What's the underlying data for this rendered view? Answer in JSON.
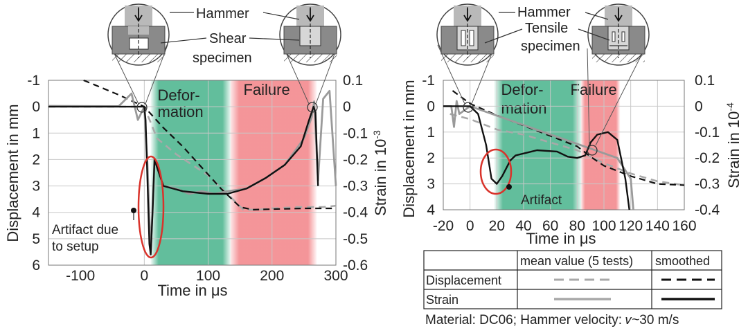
{
  "chart_data": [
    {
      "type": "line",
      "xlabel": "Time in μs",
      "ylabel": "Displacement in mm",
      "y2label": "Strain in 10",
      "y2label_exp": "-3",
      "xlim": [
        -150,
        300
      ],
      "ylim": [
        -1,
        6
      ],
      "y2lim": [
        0.1,
        -0.6
      ],
      "xticks": [
        "-100",
        "0",
        "100",
        "200",
        "300"
      ],
      "xtick_values": [
        -100,
        0,
        100,
        200,
        300
      ],
      "yticks": [
        "-1",
        "0",
        "1",
        "2",
        "3",
        "4",
        "5",
        "6"
      ],
      "y2ticks": [
        "0.1",
        "0",
        "-0.1",
        "-0.2",
        "-0.3",
        "-0.4",
        "-0.5",
        "-0.6"
      ],
      "regions": [
        {
          "label_lines": [
            "Defor-",
            "mation"
          ],
          "x0": 10,
          "x1": 135,
          "color": "#2ea87b"
        },
        {
          "label_lines": [
            "Failure"
          ],
          "x0": 135,
          "x1": 270,
          "color": "#f0686d"
        }
      ],
      "inset_labels": {
        "hammer": "Hammer",
        "specimen_lines": [
          "Shear",
          "specimen"
        ]
      },
      "artifact_label_lines": [
        "Artifact due",
        "to setup"
      ],
      "series": [
        {
          "key": "disp_mean",
          "points": [
            [
              -150,
              0
            ],
            [
              0,
              0
            ],
            [
              20,
              1.2
            ],
            [
              50,
              1.8
            ],
            [
              100,
              2.6
            ],
            [
              130,
              3.3
            ],
            [
              155,
              3.9
            ],
            [
              180,
              3.9
            ],
            [
              200,
              3.85
            ],
            [
              240,
              3.8
            ],
            [
              280,
              3.8
            ],
            [
              300,
              3.75
            ]
          ]
        },
        {
          "key": "disp_smooth",
          "points": [
            [
              -95,
              -1
            ],
            [
              -80,
              -0.85
            ],
            [
              -40,
              -0.45
            ],
            [
              0,
              0
            ],
            [
              30,
              0.8
            ],
            [
              60,
              1.5
            ],
            [
              90,
              2.3
            ],
            [
              120,
              3.1
            ],
            [
              150,
              3.8
            ],
            [
              170,
              3.9
            ],
            [
              200,
              3.88
            ],
            [
              250,
              3.85
            ],
            [
              300,
              3.85
            ]
          ]
        },
        {
          "key": "strain_mean",
          "points": [
            [
              -150,
              0.003
            ],
            [
              -40,
              0.002
            ],
            [
              -20,
              0.05
            ],
            [
              -10,
              -0.05
            ],
            [
              0,
              0
            ],
            [
              5,
              -0.22
            ],
            [
              10,
              -0.55
            ],
            [
              16,
              -0.2
            ],
            [
              30,
              -0.3
            ],
            [
              50,
              -0.31
            ],
            [
              70,
              -0.33
            ],
            [
              90,
              -0.32
            ],
            [
              110,
              -0.33
            ],
            [
              130,
              -0.32
            ],
            [
              160,
              -0.31
            ],
            [
              190,
              -0.27
            ],
            [
              220,
              -0.22
            ],
            [
              250,
              -0.12
            ],
            [
              262,
              -0.04
            ],
            [
              266,
              0.02
            ],
            [
              272,
              -0.28
            ],
            [
              280,
              0.03
            ],
            [
              290,
              0.06
            ],
            [
              300,
              -0.3
            ]
          ]
        },
        {
          "key": "strain_smooth",
          "points": [
            [
              -150,
              0
            ],
            [
              0,
              0
            ],
            [
              2,
              -0.05
            ],
            [
              4,
              -0.2
            ],
            [
              8,
              -0.52
            ],
            [
              10,
              -0.56
            ],
            [
              13,
              -0.4
            ],
            [
              16,
              -0.2
            ],
            [
              20,
              -0.23
            ],
            [
              30,
              -0.3
            ],
            [
              60,
              -0.32
            ],
            [
              100,
              -0.33
            ],
            [
              130,
              -0.33
            ],
            [
              160,
              -0.31
            ],
            [
              190,
              -0.27
            ],
            [
              220,
              -0.22
            ],
            [
              245,
              -0.15
            ],
            [
              258,
              -0.05
            ],
            [
              265,
              0.0
            ],
            [
              268,
              -0.02
            ],
            [
              272,
              -0.3
            ]
          ]
        }
      ]
    },
    {
      "type": "line",
      "xlabel": "Time in μs",
      "ylabel": "Displacement in mm",
      "y2label": "Strain in 10",
      "y2label_exp": "-4",
      "xlim": [
        -20,
        160
      ],
      "ylim": [
        -1,
        4
      ],
      "y2lim": [
        0.1,
        -0.4
      ],
      "xticks": [
        "-20",
        "0",
        "20",
        "40",
        "60",
        "80",
        "100",
        "120",
        "140",
        "160"
      ],
      "xtick_values": [
        -20,
        0,
        20,
        40,
        60,
        80,
        100,
        120,
        140,
        160
      ],
      "yticks": [
        "-1",
        "0",
        "1",
        "2",
        "3",
        "4"
      ],
      "y2ticks": [
        "0.1",
        "0",
        "-0.1",
        "-0.2",
        "-0.3",
        "-0.4"
      ],
      "regions": [
        {
          "label_lines": [
            "Defor-",
            "mation"
          ],
          "x0": 18,
          "x1": 83,
          "color": "#2ea87b"
        },
        {
          "label_lines": [
            "Failure"
          ],
          "x0": 83,
          "x1": 112,
          "color": "#f0686d"
        }
      ],
      "inset_labels": {
        "hammer": "Hammer",
        "specimen_lines": [
          "Tensile",
          "specimen"
        ]
      },
      "artifact_label_lines": [
        "Artifact"
      ],
      "series": [
        {
          "key": "disp_mean",
          "points": [
            [
              -15,
              0.3
            ],
            [
              0,
              0.5
            ],
            [
              20,
              0.9
            ],
            [
              40,
              1.1
            ],
            [
              60,
              1.4
            ],
            [
              80,
              1.7
            ],
            [
              100,
              2.2
            ],
            [
              120,
              2.6
            ],
            [
              140,
              2.9
            ],
            [
              160,
              3.05
            ]
          ]
        },
        {
          "key": "disp_smooth",
          "points": [
            [
              -13,
              -0.6
            ],
            [
              0,
              -0.1
            ],
            [
              20,
              0.35
            ],
            [
              40,
              0.75
            ],
            [
              60,
              1.15
            ],
            [
              80,
              1.55
            ],
            [
              90,
              1.95
            ],
            [
              100,
              2.3
            ],
            [
              120,
              2.7
            ],
            [
              140,
              3.0
            ],
            [
              160,
              3.05
            ]
          ]
        },
        {
          "key": "strain_mean",
          "points": [
            [
              -20,
              0
            ],
            [
              -14,
              0
            ],
            [
              -12,
              -0.08
            ],
            [
              -10,
              0.02
            ],
            [
              -8,
              -0.03
            ],
            [
              0,
              0
            ],
            [
              110,
              -0.2
            ],
            [
              120,
              -0.28
            ],
            [
              122,
              -0.4
            ]
          ]
        },
        {
          "key": "strain_smooth",
          "points": [
            [
              -20,
              0
            ],
            [
              0,
              0
            ],
            [
              6,
              -0.03
            ],
            [
              12,
              -0.15
            ],
            [
              16,
              -0.28
            ],
            [
              20,
              -0.3
            ],
            [
              24,
              -0.27
            ],
            [
              30,
              -0.21
            ],
            [
              34,
              -0.19
            ],
            [
              50,
              -0.17
            ],
            [
              65,
              -0.175
            ],
            [
              73,
              -0.195
            ],
            [
              80,
              -0.2
            ],
            [
              86,
              -0.19
            ],
            [
              90,
              -0.14
            ],
            [
              95,
              -0.11
            ],
            [
              103,
              -0.1
            ],
            [
              110,
              -0.13
            ],
            [
              116,
              -0.28
            ],
            [
              119,
              -0.4
            ]
          ]
        }
      ]
    }
  ],
  "legend_table": {
    "headers": [
      "",
      "mean value (5 tests)",
      "smoothed"
    ],
    "rows": [
      {
        "label": "Displacement"
      },
      {
        "label": "Strain"
      }
    ]
  },
  "footer_text": "Material: DC06; Hammer velocity: 𝑣~30 m/s"
}
